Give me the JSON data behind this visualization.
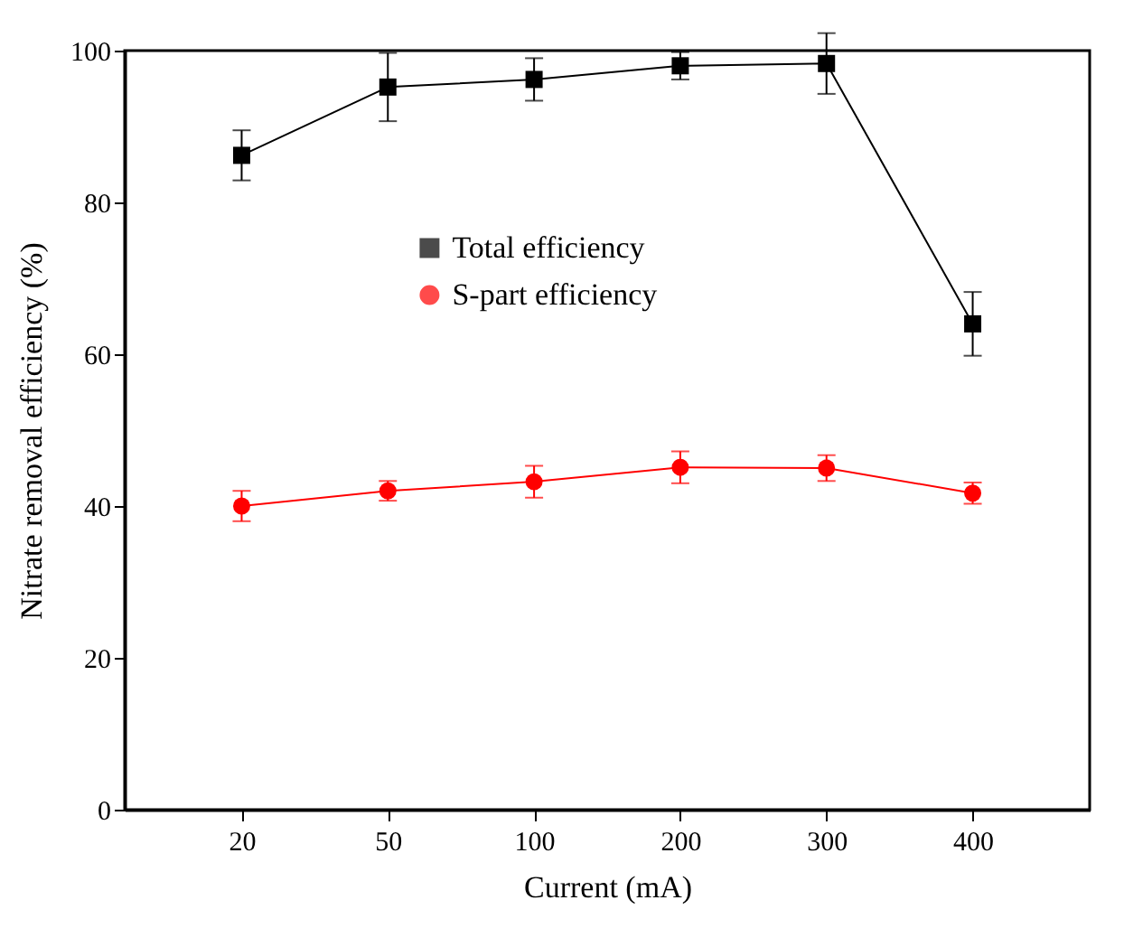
{
  "chart_data": {
    "type": "line",
    "xlabel": "Current (mA)",
    "ylabel": "Nitrate removal efficiency (%)",
    "categories": [
      "20",
      "50",
      "100",
      "200",
      "300",
      "400"
    ],
    "ylim": [
      0,
      100
    ],
    "yticks": [
      0,
      20,
      40,
      60,
      80,
      100
    ],
    "legend": "top",
    "grid": false,
    "series": [
      {
        "name": "Total efficiency",
        "color": "#000000",
        "marker": "square",
        "values": [
          86.2,
          95.2,
          96.2,
          98.0,
          98.3,
          64.0
        ],
        "errors": [
          3.3,
          4.5,
          2.8,
          1.8,
          4,
          4.2
        ]
      },
      {
        "name": "S-part efficiency",
        "color": "#ff0000",
        "marker": "circle",
        "values": [
          40.0,
          42.0,
          43.2,
          45.1,
          45.0,
          41.7
        ],
        "errors": [
          2,
          1.3,
          2.1,
          2.1,
          1.7,
          1.4
        ]
      }
    ]
  }
}
